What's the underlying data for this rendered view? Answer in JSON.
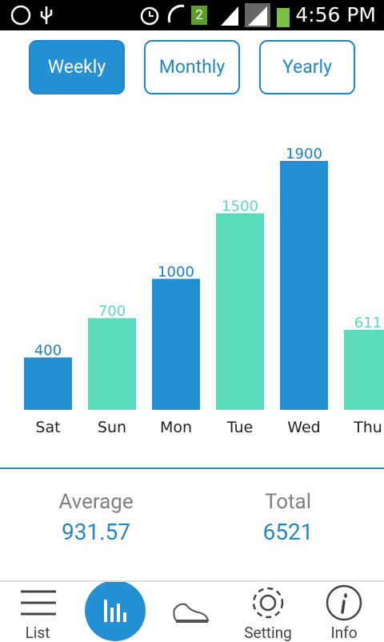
{
  "status_bar": {
    "time": "4:56 PM",
    "badge": "2"
  },
  "tabs": {
    "items": [
      "Weekly",
      "Monthly",
      "Yearly"
    ],
    "selected": 0
  },
  "chart_data": {
    "type": "bar",
    "categories": [
      "Sat",
      "Sun",
      "Mon",
      "Tue",
      "Wed",
      "Thu"
    ],
    "values": [
      400,
      700,
      1000,
      1500,
      1900,
      611
    ],
    "colors": [
      "#2490d4",
      "#5adcbc"
    ],
    "label_colors": [
      "#1f7fbf",
      "#5adcbc"
    ]
  },
  "stats": [
    {
      "label": "Average",
      "value": 931.57
    },
    {
      "label": "Total",
      "value": 6521
    }
  ],
  "nav": {
    "list": "List",
    "setting": "Setting",
    "info": "Info"
  }
}
